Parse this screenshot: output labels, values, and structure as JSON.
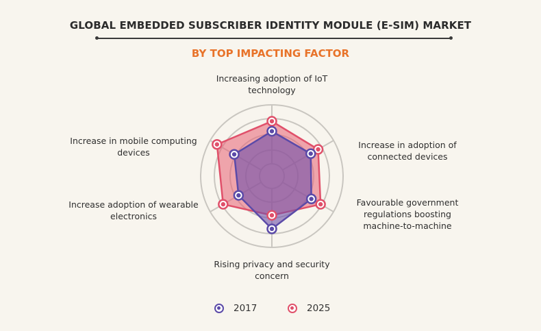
{
  "header": {
    "title": "GLOBAL EMBEDDED SUBSCRIBER IDENTITY MODULE (E-SIM) MARKET",
    "subtitle": "BY TOP IMPACTING FACTOR"
  },
  "axes": [
    {
      "label_line1": "Increasing adoption of IoT",
      "label_line2": "technology"
    },
    {
      "label_line1": "Increase in adoption of",
      "label_line2": "connected devices"
    },
    {
      "label_line1": "Favourable government",
      "label_line2": "regulations boosting",
      "label_line3": "machine-to-machine"
    },
    {
      "label_line1": "Rising privacy and security",
      "label_line2": "concern"
    },
    {
      "label_line1": "Increase adoption of wearable",
      "label_line2": "electronics"
    },
    {
      "label_line1": "Increase in mobile computing",
      "label_line2": "devices"
    }
  ],
  "legend": [
    {
      "label": "2017",
      "color": "#5b4aa8"
    },
    {
      "label": "2025",
      "color": "#e0506a"
    }
  ],
  "colors": {
    "background": "#f8f5ee",
    "title": "#2b2b2b",
    "subtitle": "#e8732a",
    "grid": "#c9c6c0",
    "series_2017": "#5b4aa8",
    "series_2025": "#e0506a"
  },
  "chart_data": {
    "type": "radar",
    "title": "GLOBAL EMBEDDED SUBSCRIBER IDENTITY MODULE (E-SIM) MARKET",
    "subtitle": "BY TOP IMPACTING FACTOR",
    "categories": [
      "Increasing adoption of IoT technology",
      "Increase in adoption of connected devices",
      "Favourable government regulations boosting machine-to-machine",
      "Rising privacy and security concern",
      "Increase adoption of wearable electronics",
      "Increase in mobile computing devices"
    ],
    "series": [
      {
        "name": "2017",
        "values": [
          63,
          63,
          64,
          74,
          54,
          61
        ]
      },
      {
        "name": "2025",
        "values": [
          77,
          75,
          79,
          55,
          79,
          89
        ]
      }
    ],
    "scale": "relative impact (unlabeled radial axis, 0-100 estimated)",
    "rings": 5,
    "ylim": [
      0,
      100
    ],
    "legend_position": "bottom"
  }
}
